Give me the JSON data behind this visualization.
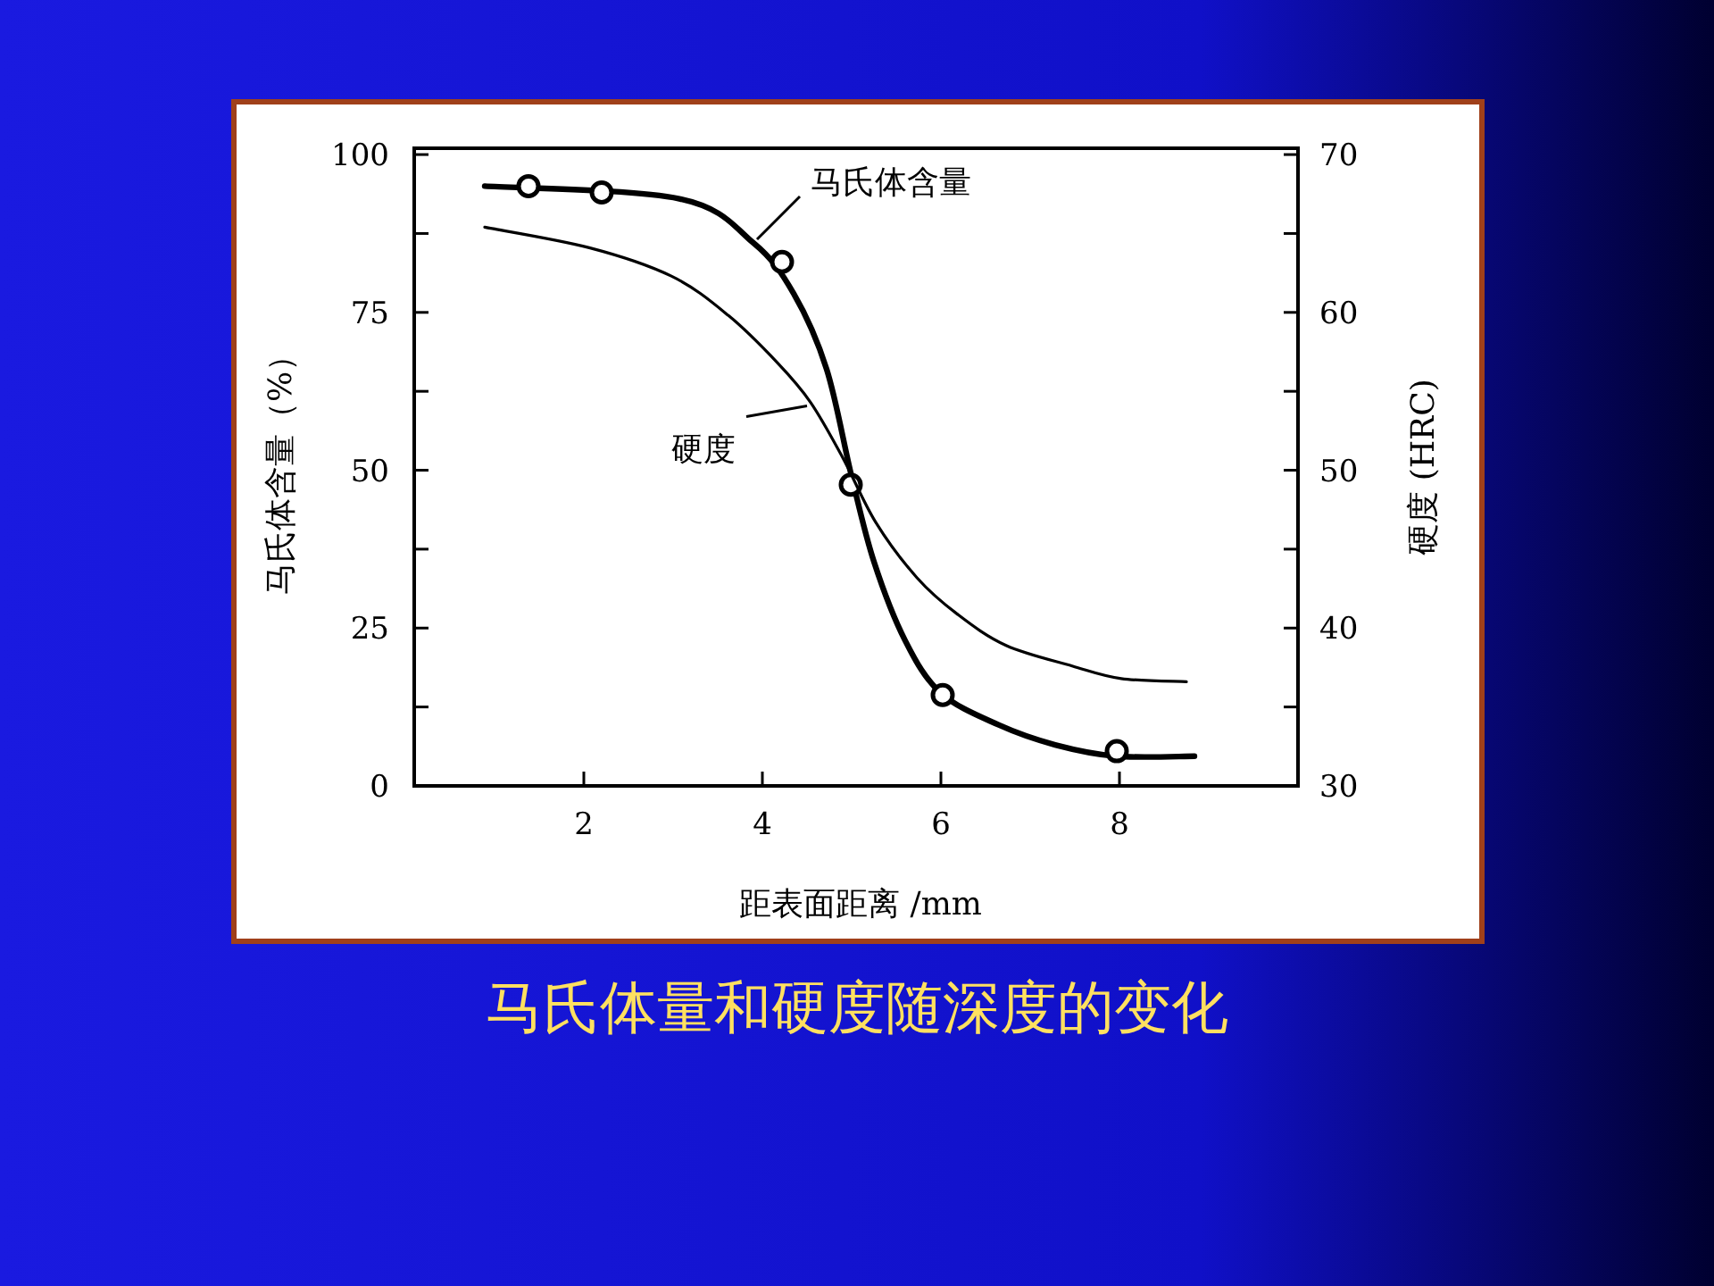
{
  "chart_data": {
    "type": "line",
    "title": "马氏体量和硬度随深度的变化",
    "xlabel": "距表面距离 /mm",
    "ylabel": "马氏体含量（%）",
    "y2label": "硬度 (HRC)",
    "xlim": [
      0.1,
      10
    ],
    "xticks": [
      2,
      4,
      6,
      8
    ],
    "ylim": [
      0,
      101
    ],
    "yticks": [
      0,
      {
        "value": 12.5,
        "label": null
      },
      25,
      {
        "value": 37.5,
        "label": null
      },
      50,
      {
        "value": 62.5,
        "label": null
      },
      75,
      {
        "value": 87.5,
        "label": null
      },
      100
    ],
    "y2lim": [
      30,
      70.4
    ],
    "y2ticks": [
      30,
      {
        "value": 35,
        "label": null
      },
      40,
      {
        "value": 45,
        "label": null
      },
      50,
      {
        "value": 55,
        "label": null
      },
      60,
      {
        "value": 65,
        "label": null
      },
      70
    ],
    "grid": false,
    "line_style": "solid",
    "series": [
      {
        "name": "马氏体含量",
        "color": "#000000",
        "x": [
          0.89,
          3.07,
          3.9,
          4.35,
          4.72,
          5.0,
          5.25,
          5.6,
          6.0,
          6.64,
          7.28,
          7.97,
          8.84
        ],
        "values": [
          95,
          93,
          86,
          78,
          66,
          49,
          35.5,
          23,
          14.7,
          9.7,
          6.5,
          4.7,
          4.7
        ]
      },
      {
        "type": "scatter",
        "marker": "circle",
        "color": "#000000",
        "x": [
          1.38,
          2.2,
          4.22,
          4.99,
          6.02,
          7.97
        ],
        "values": [
          95,
          94,
          83,
          47.7,
          14.4,
          5.5
        ]
      },
      {
        "name": "硬度",
        "axis": "y2",
        "color": "#000000",
        "x": [
          0.89,
          2.06,
          2.98,
          3.62,
          4.17,
          4.54,
          4.9,
          5.27,
          5.73,
          6.18,
          6.73,
          7.47,
          8.02,
          8.75
        ],
        "values": [
          65.4,
          64.1,
          62.3,
          59.8,
          56.8,
          54.3,
          50.8,
          46.7,
          43.2,
          40.9,
          38.9,
          37.6,
          36.8,
          36.6
        ]
      }
    ]
  }
}
